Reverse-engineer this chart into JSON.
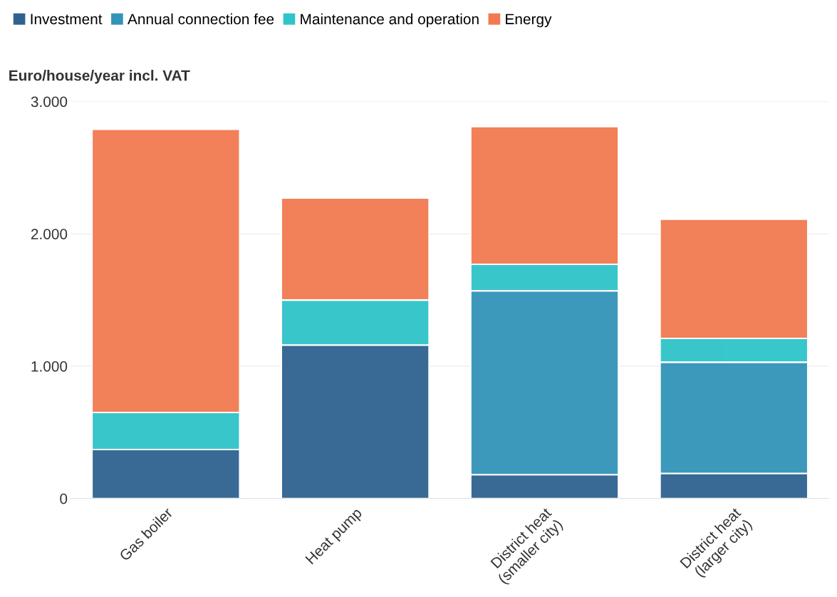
{
  "chart_data": {
    "type": "bar",
    "stacked": true,
    "ylabel": "Euro/house/year incl. VAT",
    "categories": [
      "Gas boiler",
      "Heat pump",
      "District heat\n(smaller city)",
      "District heat\n(larger city)"
    ],
    "series": [
      {
        "name": "Investment",
        "color": "#2e6390",
        "values": [
          370,
          1160,
          180,
          190
        ]
      },
      {
        "name": "Annual connection fee",
        "color": "#3294b8",
        "values": [
          0,
          0,
          1390,
          840
        ]
      },
      {
        "name": "Maintenance and operation",
        "color": "#2ec4c9",
        "values": [
          280,
          340,
          200,
          180
        ]
      },
      {
        "name": "Energy",
        "color": "#f27a50",
        "values": [
          2140,
          770,
          1040,
          900
        ]
      }
    ],
    "ylim": [
      0,
      3000
    ],
    "yticks": [
      {
        "value": 0,
        "label": "0"
      },
      {
        "value": 1000,
        "label": "1.000"
      },
      {
        "value": 2000,
        "label": "2.000"
      },
      {
        "value": 3000,
        "label": "3.000"
      }
    ],
    "grid": "y",
    "legend": "top left"
  }
}
